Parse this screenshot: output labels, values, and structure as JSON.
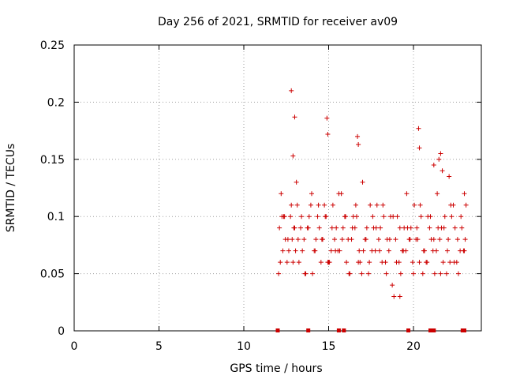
{
  "chart_data": {
    "type": "scatter",
    "title": "Day 256 of 2021, SRMTID for receiver av09",
    "xlabel": "GPS time / hours",
    "ylabel": "SRMTID / TECUs",
    "xlim": [
      0,
      24
    ],
    "ylim": [
      0,
      0.25
    ],
    "xticks": [
      0,
      5,
      10,
      15,
      20
    ],
    "xtick_labels": [
      "0",
      "5",
      "10",
      "15",
      "20"
    ],
    "yticks": [
      0,
      0.05,
      0.1,
      0.15,
      0.2,
      0.25
    ],
    "ytick_labels": [
      "0",
      "0.05",
      "0.1",
      "0.15",
      "0.2",
      "0.25"
    ],
    "grid": true,
    "marker_color": "#cc0000",
    "series": [
      {
        "name": "SRMTID",
        "x": [
          12.1,
          12.2,
          12.3,
          12.4,
          12.6,
          12.8,
          12.9,
          13.0,
          13.1,
          13.2,
          13.4,
          13.6,
          13.8,
          14.0,
          14.2,
          14.4,
          14.6,
          14.8,
          15.0,
          15.2,
          15.4,
          15.6,
          15.8,
          16.0,
          16.2,
          16.4,
          16.6,
          16.8,
          17.0,
          17.2,
          17.4,
          17.6,
          17.8,
          18.0,
          18.2,
          18.4,
          18.6,
          18.8,
          19.0,
          19.2,
          19.4,
          19.6,
          19.8,
          20.0,
          20.2,
          20.4,
          20.6,
          20.8,
          21.0,
          21.2,
          21.4,
          21.6,
          21.8,
          22.0,
          22.2,
          22.4,
          22.6,
          22.8,
          23.0,
          23.1,
          12.15,
          12.45,
          12.75,
          13.05,
          13.35,
          13.65,
          13.95,
          14.25,
          14.55,
          14.85,
          15.15,
          15.45,
          15.75,
          16.05,
          16.35,
          16.65,
          16.95,
          17.25,
          17.55,
          17.85,
          18.15,
          18.45,
          18.75,
          19.05,
          19.35,
          19.65,
          19.95,
          20.25,
          20.55,
          20.85,
          21.15,
          21.45,
          21.75,
          22.05,
          22.35,
          22.65,
          22.95,
          12.25,
          12.55,
          12.85,
          13.15,
          13.45,
          13.75,
          14.05,
          14.35,
          14.65,
          14.95,
          15.25,
          15.55,
          15.85,
          16.15,
          16.45,
          16.75,
          17.05,
          17.35,
          17.65,
          17.95,
          18.25,
          18.55,
          18.85,
          19.15,
          19.45,
          19.75,
          20.05,
          20.35,
          20.65,
          20.95,
          21.25,
          21.55,
          21.85,
          22.15,
          22.45,
          22.75,
          23.05,
          12.05,
          12.35,
          12.65,
          12.95,
          13.25,
          13.55,
          13.85,
          14.15,
          14.45,
          14.75,
          15.05,
          15.35,
          15.65,
          15.95,
          16.25,
          16.55,
          16.85,
          17.15,
          17.45,
          17.75,
          18.05,
          18.35,
          18.65,
          18.95,
          19.25,
          19.55,
          19.85,
          20.15,
          20.45,
          20.75,
          21.05,
          21.35,
          21.65,
          21.95,
          22.25,
          22.55,
          22.85,
          12.8,
          12.9,
          13.0,
          14.9,
          14.95,
          16.7,
          16.75,
          19.2,
          20.3,
          20.35,
          21.2,
          21.5,
          21.6,
          21.7,
          22.1,
          23.0
        ],
        "y": [
          0.09,
          0.12,
          0.07,
          0.1,
          0.08,
          0.11,
          0.06,
          0.09,
          0.13,
          0.08,
          0.1,
          0.05,
          0.09,
          0.12,
          0.07,
          0.11,
          0.08,
          0.1,
          0.06,
          0.09,
          0.07,
          0.12,
          0.08,
          0.1,
          0.05,
          0.09,
          0.11,
          0.07,
          0.13,
          0.08,
          0.06,
          0.1,
          0.09,
          0.07,
          0.11,
          0.05,
          0.08,
          0.1,
          0.06,
          0.09,
          0.07,
          0.12,
          0.08,
          0.05,
          0.09,
          0.11,
          0.07,
          0.06,
          0.1,
          0.08,
          0.12,
          0.05,
          0.09,
          0.07,
          0.11,
          0.06,
          0.08,
          0.1,
          0.07,
          0.11,
          0.06,
          0.08,
          0.1,
          0.07,
          0.09,
          0.05,
          0.11,
          0.08,
          0.06,
          0.1,
          0.07,
          0.09,
          0.12,
          0.06,
          0.08,
          0.1,
          0.05,
          0.09,
          0.07,
          0.11,
          0.06,
          0.08,
          0.04,
          0.1,
          0.07,
          0.09,
          0.06,
          0.08,
          0.05,
          0.1,
          0.07,
          0.09,
          0.06,
          0.08,
          0.11,
          0.05,
          0.07,
          0.1,
          0.06,
          0.08,
          0.11,
          0.07,
          0.09,
          0.05,
          0.1,
          0.08,
          0.06,
          0.11,
          0.07,
          0.09,
          0.08,
          0.1,
          0.06,
          0.07,
          0.05,
          0.09,
          0.08,
          0.1,
          0.07,
          0.03,
          0.06,
          0.09,
          0.08,
          0.11,
          0.06,
          0.07,
          0.09,
          0.05,
          0.08,
          0.1,
          0.06,
          0.09,
          0.07,
          0.08,
          0.05,
          0.1,
          0.07,
          0.09,
          0.06,
          0.08,
          0.1,
          0.07,
          0.09,
          0.11,
          0.06,
          0.08,
          0.07,
          0.1,
          0.05,
          0.09,
          0.06,
          0.08,
          0.11,
          0.07,
          0.09,
          0.06,
          0.1,
          0.08,
          0.05,
          0.07,
          0.09,
          0.08,
          0.1,
          0.06,
          0.08,
          0.07,
          0.09,
          0.05,
          0.1,
          0.06,
          0.09,
          0.21,
          0.153,
          0.187,
          0.186,
          0.172,
          0.17,
          0.163,
          0.03,
          0.177,
          0.16,
          0.145,
          0.15,
          0.155,
          0.14,
          0.135,
          0.12
        ]
      }
    ],
    "data_gaps": [
      12.0,
      13.8,
      15.6,
      15.9,
      19.7,
      21.0,
      21.1,
      21.2,
      22.9,
      23.0
    ]
  }
}
